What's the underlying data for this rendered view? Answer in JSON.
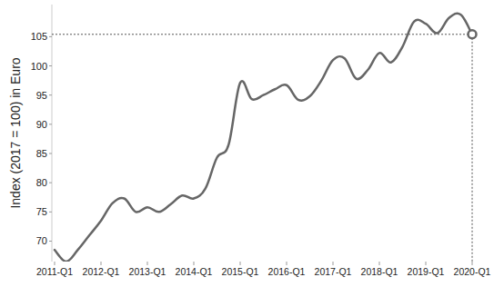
{
  "chart_data": {
    "type": "line",
    "y_label": "Index (2017 = 100) in Euro",
    "categories": [
      "2011-Q1",
      null,
      null,
      null,
      "2012-Q1",
      null,
      null,
      null,
      "2013-Q1",
      null,
      null,
      null,
      "2014-Q1",
      null,
      null,
      null,
      "2015-Q1",
      null,
      null,
      null,
      "2016-Q1",
      null,
      null,
      null,
      "2017-Q1",
      null,
      null,
      null,
      "2018-Q1",
      null,
      null,
      null,
      "2019-Q1",
      null,
      null,
      null,
      "2020-Q1"
    ],
    "series": [
      {
        "name": "Index",
        "color": "#666666",
        "marker": "end-circle",
        "values": [
          68.5,
          66.5,
          68.5,
          71,
          73.5,
          76.5,
          77.3,
          75,
          75.8,
          75,
          76.3,
          77.8,
          77.3,
          79,
          84.3,
          86.5,
          97.1,
          94.3,
          95,
          96,
          96.7,
          94.2,
          94.8,
          97.5,
          101,
          101.3,
          97.8,
          99.3,
          102.2,
          100.6,
          103.3,
          107.6,
          107.2,
          105.6,
          108.2,
          108.8,
          105.4
        ]
      }
    ],
    "ylim": [
      66.5,
      110.5
    ],
    "yticks": [
      70,
      75,
      80,
      85,
      90,
      95,
      100,
      105
    ],
    "grid": false
  }
}
